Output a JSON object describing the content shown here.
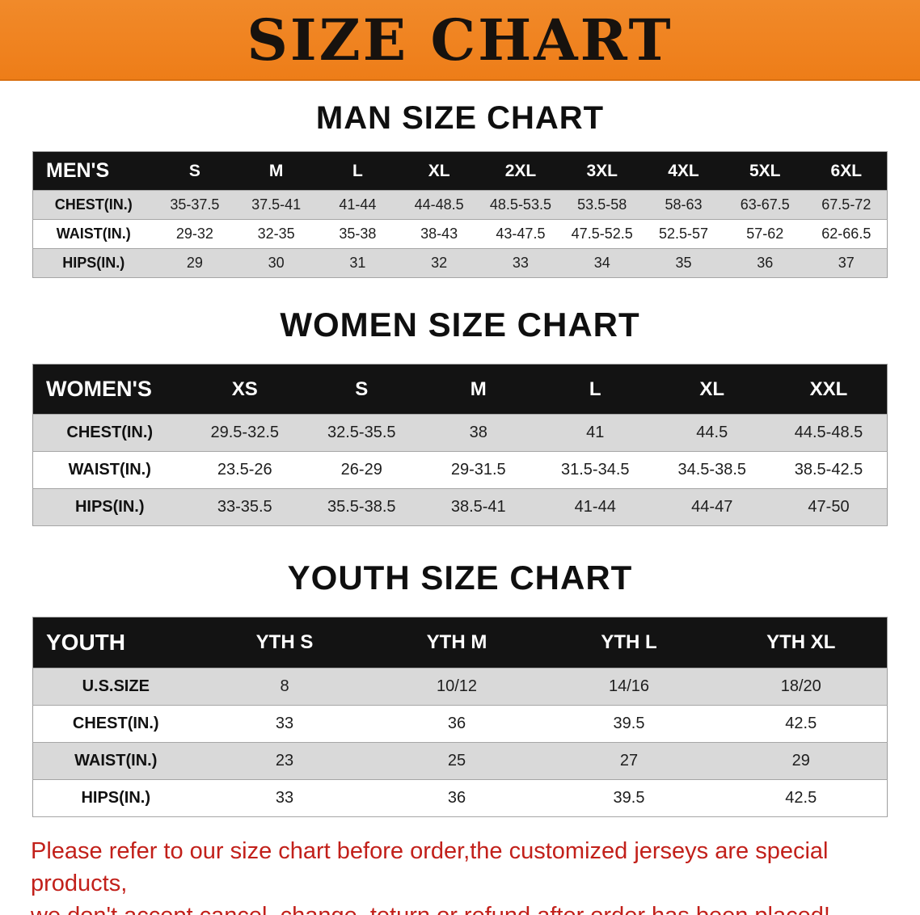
{
  "banner": {
    "title": "SIZE CHART"
  },
  "colors": {
    "banner_orange": "#ee7d18",
    "header_black": "#131313",
    "stripe_gray": "#d9d9d9",
    "note_red": "#c2201a"
  },
  "sections": [
    {
      "heading": "MAN SIZE CHART",
      "table": {
        "header_label": "MEN'S",
        "columns": [
          "S",
          "M",
          "L",
          "XL",
          "2XL",
          "3XL",
          "4XL",
          "5XL",
          "6XL"
        ],
        "rows": [
          {
            "label": "CHEST(IN.)",
            "values": [
              "35-37.5",
              "37.5-41",
              "41-44",
              "44-48.5",
              "48.5-53.5",
              "53.5-58",
              "58-63",
              "63-67.5",
              "67.5-72"
            ]
          },
          {
            "label": "WAIST(IN.)",
            "values": [
              "29-32",
              "32-35",
              "35-38",
              "38-43",
              "43-47.5",
              "47.5-52.5",
              "52.5-57",
              "57-62",
              "62-66.5"
            ]
          },
          {
            "label": "HIPS(IN.)",
            "values": [
              "29",
              "30",
              "31",
              "32",
              "33",
              "34",
              "35",
              "36",
              "37"
            ]
          }
        ]
      }
    },
    {
      "heading": "WOMEN SIZE CHART",
      "table": {
        "header_label": "WOMEN'S",
        "columns": [
          "XS",
          "S",
          "M",
          "L",
          "XL",
          "XXL"
        ],
        "rows": [
          {
            "label": "CHEST(IN.)",
            "values": [
              "29.5-32.5",
              "32.5-35.5",
              "38",
              "41",
              "44.5",
              "44.5-48.5"
            ]
          },
          {
            "label": "WAIST(IN.)",
            "values": [
              "23.5-26",
              "26-29",
              "29-31.5",
              "31.5-34.5",
              "34.5-38.5",
              "38.5-42.5"
            ]
          },
          {
            "label": "HIPS(IN.)",
            "values": [
              "33-35.5",
              "35.5-38.5",
              "38.5-41",
              "41-44",
              "44-47",
              "47-50"
            ]
          }
        ]
      }
    },
    {
      "heading": "YOUTH SIZE CHART",
      "table": {
        "header_label": "YOUTH",
        "columns": [
          "YTH S",
          "YTH M",
          "YTH L",
          "YTH XL"
        ],
        "rows": [
          {
            "label": "U.S.SIZE",
            "values": [
              "8",
              "10/12",
              "14/16",
              "18/20"
            ]
          },
          {
            "label": "CHEST(IN.)",
            "values": [
              "33",
              "36",
              "39.5",
              "42.5"
            ]
          },
          {
            "label": "WAIST(IN.)",
            "values": [
              "23",
              "25",
              "27",
              "29"
            ]
          },
          {
            "label": "HIPS(IN.)",
            "values": [
              "33",
              "36",
              "39.5",
              "42.5"
            ]
          }
        ]
      }
    }
  ],
  "footer_note": {
    "line1": "Please refer to our size chart before order,the customized jerseys are special products,",
    "line2": "we don't accept cancel, change, teturn or refund after order has been placed!"
  }
}
